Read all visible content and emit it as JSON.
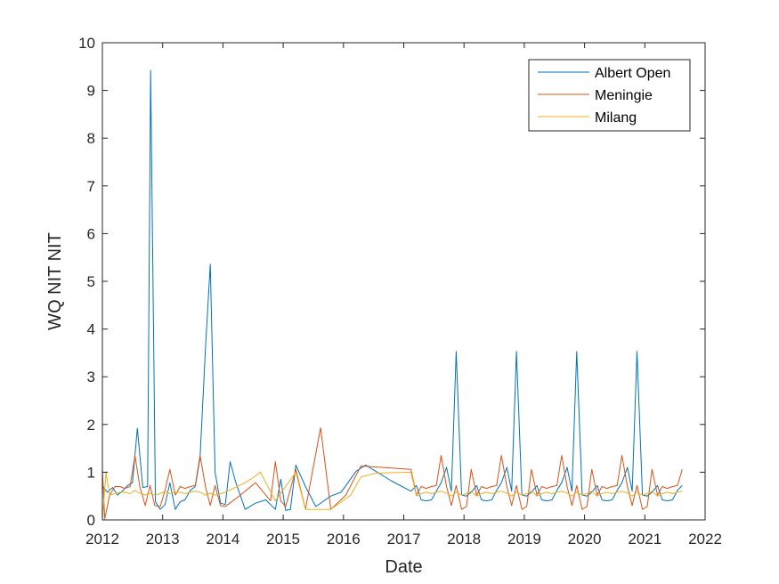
{
  "chart_data": {
    "type": "line",
    "xlabel": "Date",
    "ylabel": "WQ NIT NIT",
    "xlim": [
      2012,
      2022
    ],
    "ylim": [
      0,
      10
    ],
    "x_ticks": [
      "2012",
      "2013",
      "2014",
      "2015",
      "2016",
      "2017",
      "2018",
      "2019",
      "2020",
      "2021",
      "2022"
    ],
    "y_ticks": [
      "0",
      "1",
      "2",
      "3",
      "4",
      "5",
      "6",
      "7",
      "8",
      "9",
      "10"
    ],
    "grid": false,
    "legend_position": "top-right",
    "series": [
      {
        "name": "Albert Open",
        "color": "#0072BD",
        "points": [
          [
            2012.0,
            0.72
          ],
          [
            2012.08,
            0.58
          ],
          [
            2012.17,
            0.68
          ],
          [
            2012.25,
            0.52
          ],
          [
            2012.33,
            0.6
          ],
          [
            2012.42,
            0.72
          ],
          [
            2012.5,
            0.78
          ],
          [
            2012.58,
            1.92
          ],
          [
            2012.67,
            0.68
          ],
          [
            2012.75,
            0.7
          ],
          [
            2012.8,
            9.42
          ],
          [
            2012.88,
            0.38
          ],
          [
            2012.96,
            0.22
          ],
          [
            2013.04,
            0.32
          ],
          [
            2013.12,
            0.78
          ],
          [
            2013.21,
            0.22
          ],
          [
            2013.29,
            0.38
          ],
          [
            2013.37,
            0.42
          ],
          [
            2013.46,
            0.62
          ],
          [
            2013.54,
            0.7
          ],
          [
            2013.62,
            1.3
          ],
          [
            2013.71,
            3.6
          ],
          [
            2013.79,
            5.36
          ],
          [
            2013.87,
            1.0
          ],
          [
            2013.96,
            0.35
          ],
          [
            2014.04,
            0.32
          ],
          [
            2014.12,
            1.22
          ],
          [
            2014.21,
            0.8
          ],
          [
            2014.37,
            0.22
          ],
          [
            2014.54,
            0.35
          ],
          [
            2014.71,
            0.42
          ],
          [
            2014.87,
            0.22
          ],
          [
            2014.96,
            0.85
          ],
          [
            2015.04,
            0.2
          ],
          [
            2015.12,
            0.22
          ],
          [
            2015.21,
            1.15
          ],
          [
            2015.37,
            0.7
          ],
          [
            2015.54,
            0.28
          ],
          [
            2015.79,
            0.5
          ],
          [
            2015.96,
            0.58
          ],
          [
            2016.21,
            1.02
          ],
          [
            2016.37,
            1.15
          ],
          [
            2016.79,
            0.82
          ],
          [
            2017.12,
            0.6
          ],
          [
            2017.21,
            0.72
          ],
          [
            2017.29,
            0.42
          ],
          [
            2017.37,
            0.4
          ],
          [
            2017.46,
            0.42
          ],
          [
            2017.54,
            0.6
          ],
          [
            2017.62,
            0.78
          ],
          [
            2017.71,
            1.1
          ],
          [
            2017.79,
            0.6
          ],
          [
            2017.87,
            3.53
          ],
          [
            2017.96,
            0.52
          ],
          [
            2018.04,
            0.5
          ],
          [
            2018.12,
            0.58
          ],
          [
            2018.21,
            0.72
          ],
          [
            2018.29,
            0.42
          ],
          [
            2018.37,
            0.4
          ],
          [
            2018.46,
            0.42
          ],
          [
            2018.54,
            0.62
          ],
          [
            2018.62,
            0.78
          ],
          [
            2018.71,
            1.1
          ],
          [
            2018.79,
            0.6
          ],
          [
            2018.87,
            3.53
          ],
          [
            2018.96,
            0.52
          ],
          [
            2019.04,
            0.5
          ],
          [
            2019.12,
            0.58
          ],
          [
            2019.21,
            0.72
          ],
          [
            2019.29,
            0.42
          ],
          [
            2019.37,
            0.4
          ],
          [
            2019.46,
            0.42
          ],
          [
            2019.54,
            0.62
          ],
          [
            2019.62,
            0.78
          ],
          [
            2019.71,
            1.1
          ],
          [
            2019.79,
            0.6
          ],
          [
            2019.87,
            3.53
          ],
          [
            2019.96,
            0.52
          ],
          [
            2020.04,
            0.5
          ],
          [
            2020.12,
            0.58
          ],
          [
            2020.21,
            0.72
          ],
          [
            2020.29,
            0.42
          ],
          [
            2020.37,
            0.4
          ],
          [
            2020.46,
            0.42
          ],
          [
            2020.54,
            0.62
          ],
          [
            2020.62,
            0.78
          ],
          [
            2020.71,
            1.1
          ],
          [
            2020.79,
            0.6
          ],
          [
            2020.87,
            3.53
          ],
          [
            2020.96,
            0.52
          ],
          [
            2021.04,
            0.5
          ],
          [
            2021.12,
            0.58
          ],
          [
            2021.21,
            0.72
          ],
          [
            2021.29,
            0.42
          ],
          [
            2021.37,
            0.4
          ],
          [
            2021.46,
            0.42
          ],
          [
            2021.54,
            0.62
          ],
          [
            2021.62,
            0.72
          ]
        ]
      },
      {
        "name": "Meningie",
        "color": "#D95319",
        "points": [
          [
            2012.0,
            1.06
          ],
          [
            2012.04,
            0.02
          ],
          [
            2012.12,
            0.52
          ],
          [
            2012.21,
            0.7
          ],
          [
            2012.29,
            0.7
          ],
          [
            2012.37,
            0.66
          ],
          [
            2012.46,
            0.7
          ],
          [
            2012.54,
            1.35
          ],
          [
            2012.62,
            0.7
          ],
          [
            2012.71,
            0.3
          ],
          [
            2012.79,
            0.72
          ],
          [
            2012.87,
            0.3
          ],
          [
            2012.96,
            0.28
          ],
          [
            2013.04,
            0.62
          ],
          [
            2013.12,
            1.06
          ],
          [
            2013.21,
            0.52
          ],
          [
            2013.29,
            0.7
          ],
          [
            2013.37,
            0.66
          ],
          [
            2013.46,
            0.7
          ],
          [
            2013.54,
            0.72
          ],
          [
            2013.62,
            1.35
          ],
          [
            2013.71,
            0.7
          ],
          [
            2013.79,
            0.3
          ],
          [
            2013.87,
            0.72
          ],
          [
            2013.96,
            0.3
          ],
          [
            2014.04,
            0.28
          ],
          [
            2014.29,
            0.52
          ],
          [
            2014.54,
            0.78
          ],
          [
            2014.79,
            0.4
          ],
          [
            2014.87,
            1.22
          ],
          [
            2014.96,
            0.4
          ],
          [
            2015.04,
            0.28
          ],
          [
            2015.21,
            1.06
          ],
          [
            2015.37,
            0.22
          ],
          [
            2015.62,
            1.93
          ],
          [
            2015.79,
            0.22
          ],
          [
            2016.04,
            0.52
          ],
          [
            2016.29,
            1.13
          ],
          [
            2017.12,
            1.06
          ],
          [
            2017.21,
            0.52
          ],
          [
            2017.29,
            0.7
          ],
          [
            2017.37,
            0.66
          ],
          [
            2017.46,
            0.7
          ],
          [
            2017.54,
            0.72
          ],
          [
            2017.62,
            1.35
          ],
          [
            2017.71,
            0.7
          ],
          [
            2017.79,
            0.3
          ],
          [
            2017.87,
            0.72
          ],
          [
            2017.96,
            0.22
          ],
          [
            2018.04,
            0.28
          ],
          [
            2018.12,
            1.06
          ],
          [
            2018.21,
            0.52
          ],
          [
            2018.29,
            0.7
          ],
          [
            2018.37,
            0.66
          ],
          [
            2018.46,
            0.7
          ],
          [
            2018.54,
            0.72
          ],
          [
            2018.62,
            1.35
          ],
          [
            2018.71,
            0.7
          ],
          [
            2018.79,
            0.3
          ],
          [
            2018.87,
            0.72
          ],
          [
            2018.96,
            0.22
          ],
          [
            2019.04,
            0.28
          ],
          [
            2019.12,
            1.06
          ],
          [
            2019.21,
            0.52
          ],
          [
            2019.29,
            0.7
          ],
          [
            2019.37,
            0.66
          ],
          [
            2019.46,
            0.7
          ],
          [
            2019.54,
            0.72
          ],
          [
            2019.62,
            1.35
          ],
          [
            2019.71,
            0.7
          ],
          [
            2019.79,
            0.3
          ],
          [
            2019.87,
            0.72
          ],
          [
            2019.96,
            0.22
          ],
          [
            2020.04,
            0.28
          ],
          [
            2020.12,
            1.06
          ],
          [
            2020.21,
            0.52
          ],
          [
            2020.29,
            0.7
          ],
          [
            2020.37,
            0.66
          ],
          [
            2020.46,
            0.7
          ],
          [
            2020.54,
            0.72
          ],
          [
            2020.62,
            1.35
          ],
          [
            2020.71,
            0.7
          ],
          [
            2020.79,
            0.3
          ],
          [
            2020.87,
            0.72
          ],
          [
            2020.96,
            0.22
          ],
          [
            2021.04,
            0.28
          ],
          [
            2021.12,
            1.06
          ],
          [
            2021.21,
            0.52
          ],
          [
            2021.29,
            0.7
          ],
          [
            2021.37,
            0.66
          ],
          [
            2021.46,
            0.7
          ],
          [
            2021.54,
            0.72
          ],
          [
            2021.62,
            1.06
          ]
        ]
      },
      {
        "name": "Milang",
        "color": "#EDB120",
        "points": [
          [
            2012.0,
            0.0
          ],
          [
            2012.06,
            1.0
          ],
          [
            2012.12,
            0.52
          ],
          [
            2012.21,
            0.55
          ],
          [
            2012.29,
            0.58
          ],
          [
            2012.37,
            0.58
          ],
          [
            2012.46,
            0.55
          ],
          [
            2012.54,
            0.62
          ],
          [
            2012.62,
            0.56
          ],
          [
            2012.71,
            0.52
          ],
          [
            2012.79,
            0.56
          ],
          [
            2012.87,
            0.52
          ],
          [
            2012.96,
            0.55
          ],
          [
            2013.04,
            0.6
          ],
          [
            2013.12,
            0.55
          ],
          [
            2013.21,
            0.58
          ],
          [
            2013.29,
            0.58
          ],
          [
            2013.37,
            0.55
          ],
          [
            2013.46,
            0.58
          ],
          [
            2013.54,
            0.6
          ],
          [
            2013.62,
            0.58
          ],
          [
            2013.71,
            0.52
          ],
          [
            2013.79,
            0.56
          ],
          [
            2013.87,
            0.52
          ],
          [
            2013.96,
            0.55
          ],
          [
            2014.04,
            0.58
          ],
          [
            2014.37,
            0.78
          ],
          [
            2014.54,
            0.92
          ],
          [
            2014.62,
            1.0
          ],
          [
            2014.87,
            0.4
          ],
          [
            2015.21,
            1.0
          ],
          [
            2015.37,
            0.22
          ],
          [
            2015.79,
            0.22
          ],
          [
            2016.12,
            0.52
          ],
          [
            2016.29,
            0.9
          ],
          [
            2016.54,
            0.98
          ],
          [
            2017.12,
            1.0
          ],
          [
            2017.21,
            0.5
          ],
          [
            2017.29,
            0.55
          ],
          [
            2017.37,
            0.58
          ],
          [
            2017.46,
            0.55
          ],
          [
            2017.54,
            0.58
          ],
          [
            2017.62,
            0.6
          ],
          [
            2017.71,
            0.56
          ],
          [
            2017.79,
            0.5
          ],
          [
            2017.87,
            0.58
          ],
          [
            2017.96,
            0.52
          ],
          [
            2018.04,
            0.55
          ],
          [
            2018.12,
            0.6
          ],
          [
            2018.21,
            0.5
          ],
          [
            2018.29,
            0.55
          ],
          [
            2018.37,
            0.58
          ],
          [
            2018.46,
            0.55
          ],
          [
            2018.54,
            0.58
          ],
          [
            2018.62,
            0.6
          ],
          [
            2018.71,
            0.56
          ],
          [
            2018.79,
            0.5
          ],
          [
            2018.87,
            0.58
          ],
          [
            2018.96,
            0.52
          ],
          [
            2019.04,
            0.55
          ],
          [
            2019.12,
            0.6
          ],
          [
            2019.21,
            0.5
          ],
          [
            2019.29,
            0.55
          ],
          [
            2019.37,
            0.58
          ],
          [
            2019.46,
            0.55
          ],
          [
            2019.54,
            0.58
          ],
          [
            2019.62,
            0.6
          ],
          [
            2019.71,
            0.56
          ],
          [
            2019.79,
            0.5
          ],
          [
            2019.87,
            0.58
          ],
          [
            2019.96,
            0.52
          ],
          [
            2020.04,
            0.55
          ],
          [
            2020.12,
            0.6
          ],
          [
            2020.21,
            0.5
          ],
          [
            2020.29,
            0.55
          ],
          [
            2020.37,
            0.58
          ],
          [
            2020.46,
            0.55
          ],
          [
            2020.54,
            0.58
          ],
          [
            2020.62,
            0.6
          ],
          [
            2020.71,
            0.56
          ],
          [
            2020.79,
            0.5
          ],
          [
            2020.87,
            0.58
          ],
          [
            2020.96,
            0.52
          ],
          [
            2021.04,
            0.55
          ],
          [
            2021.12,
            0.6
          ],
          [
            2021.21,
            0.5
          ],
          [
            2021.29,
            0.55
          ],
          [
            2021.37,
            0.58
          ],
          [
            2021.46,
            0.55
          ],
          [
            2021.54,
            0.58
          ],
          [
            2021.62,
            0.6
          ]
        ]
      }
    ]
  }
}
